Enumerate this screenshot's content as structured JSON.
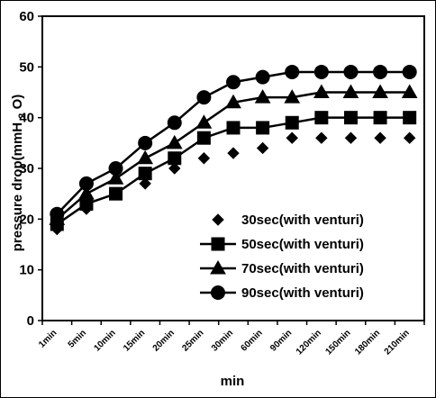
{
  "chart_data": {
    "type": "line",
    "title": "",
    "xlabel": "min",
    "ylabel_parts": [
      "pressure drop(mmH",
      "2",
      "O)"
    ],
    "categories": [
      "1min",
      "5min",
      "10min",
      "15min",
      "20min",
      "25min",
      "30min",
      "60min",
      "90min",
      "120min",
      "150min",
      "180min",
      "210min"
    ],
    "ylim": [
      0,
      60
    ],
    "yticks": [
      "0",
      "10",
      "20",
      "30",
      "40",
      "50",
      "60"
    ],
    "grid": false,
    "legend_position": "lower-right",
    "series": [
      {
        "name": "30sec(with venturi)",
        "marker": "diamond",
        "line": false,
        "color": "#000000",
        "values": [
          18,
          22,
          25,
          27,
          30,
          32,
          33,
          34,
          36,
          36,
          36,
          36,
          36
        ]
      },
      {
        "name": "50sec(with venturi)",
        "marker": "square",
        "line": true,
        "color": "#000000",
        "values": [
          19,
          23,
          25,
          29,
          32,
          36,
          38,
          38,
          39,
          40,
          40,
          40,
          40
        ]
      },
      {
        "name": "70sec(with venturi)",
        "marker": "triangle",
        "line": true,
        "color": "#000000",
        "values": [
          20,
          25,
          28,
          32,
          35,
          39,
          43,
          44,
          44,
          45,
          45,
          45,
          45
        ]
      },
      {
        "name": "90sec(with venturi)",
        "marker": "circle",
        "line": true,
        "color": "#000000",
        "values": [
          21,
          27,
          30,
          35,
          39,
          44,
          47,
          48,
          49,
          49,
          49,
          49,
          49
        ]
      }
    ]
  }
}
